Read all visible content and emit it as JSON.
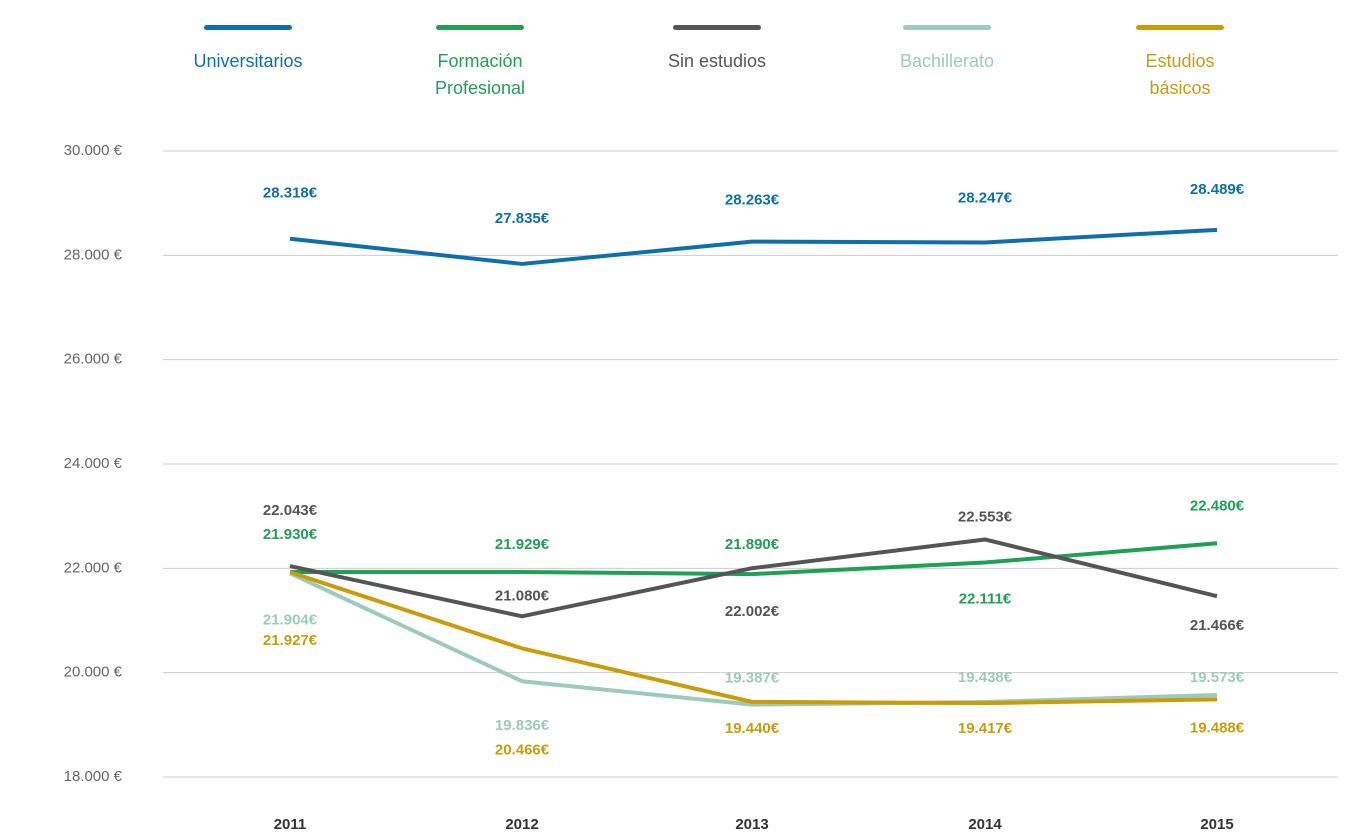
{
  "chart_data": {
    "type": "line",
    "categories": [
      "2011",
      "2012",
      "2013",
      "2014",
      "2015"
    ],
    "ylim": [
      18000,
      30000
    ],
    "yticks": [
      {
        "value": 18000,
        "label": "18.000 €"
      },
      {
        "value": 20000,
        "label": "20.000 €"
      },
      {
        "value": 22000,
        "label": "22.000 €"
      },
      {
        "value": 24000,
        "label": "24.000 €"
      },
      {
        "value": 26000,
        "label": "26.000 €"
      },
      {
        "value": 28000,
        "label": "28.000 €"
      },
      {
        "value": 30000,
        "label": "30.000 €"
      }
    ],
    "grid": true,
    "legend": "top",
    "series": [
      {
        "name": "Universitarios",
        "color": "#0f6fad",
        "values": [
          28318,
          27835,
          28263,
          28247,
          28489
        ],
        "value_labels": [
          "28.318€",
          "27.835€",
          "28.263€",
          "28.247€",
          "28.489€"
        ]
      },
      {
        "name": "Formación Profesional",
        "color": "#1fa055",
        "values": [
          21930,
          21929,
          21890,
          22111,
          22480
        ],
        "value_labels": [
          "21.930€",
          "21.929€",
          "21.890€",
          "22.111€",
          "22.480€"
        ]
      },
      {
        "name": "Sin estudios",
        "color": "#555555",
        "values": [
          22043,
          21080,
          22002,
          22553,
          21466
        ],
        "value_labels": [
          "22.043€",
          "21.080€",
          "22.002€",
          "22.553€",
          "21.466€"
        ]
      },
      {
        "name": "Bachillerato",
        "color": "#9ccbb9",
        "values": [
          21904,
          19836,
          19387,
          19438,
          19573
        ],
        "value_labels": [
          "21.904€",
          "19.836€",
          "19.387€",
          "19.438€",
          "19.573€"
        ]
      },
      {
        "name": "Estudios básicos",
        "color": "#c99c0b",
        "values": [
          21927,
          20466,
          19440,
          19417,
          19488
        ],
        "value_labels": [
          "21.927€",
          "20.466€",
          "19.440€",
          "19.417€",
          "19.488€"
        ]
      }
    ]
  }
}
